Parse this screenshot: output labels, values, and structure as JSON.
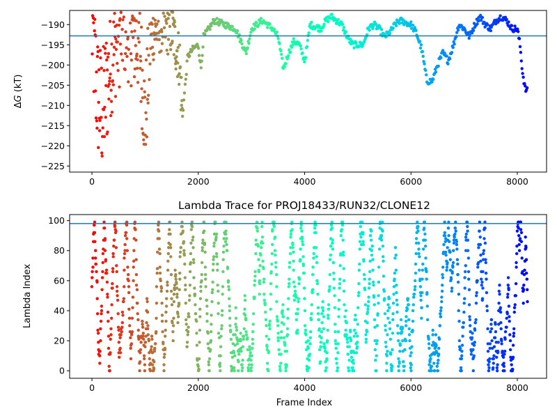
{
  "chart_data": [
    {
      "type": "scatter",
      "ylabel_prefix": "Δ",
      "ylabel_var": "G",
      "ylabel_unit": " (kT)",
      "xlim": [
        -420,
        8550
      ],
      "ylim": [
        -226.5,
        -186.5
      ],
      "xticks": [
        0,
        2000,
        4000,
        6000,
        8000
      ],
      "yticks": [
        -225,
        -220,
        -215,
        -210,
        -205,
        -200,
        -195,
        -190
      ],
      "hline": -192.8,
      "hline_color": "#1f77b4",
      "colormap": "rainbow (reversed)",
      "n_frames": 8190,
      "trajectory": [
        {
          "x": 0,
          "y": -190
        },
        {
          "x": 100,
          "y": -207
        },
        {
          "x": 200,
          "y": -212
        },
        {
          "x": 300,
          "y": -203
        },
        {
          "x": 450,
          "y": -195
        },
        {
          "x": 600,
          "y": -190
        },
        {
          "x": 900,
          "y": -195
        },
        {
          "x": 1000,
          "y": -214
        },
        {
          "x": 1100,
          "y": -193
        },
        {
          "x": 1300,
          "y": -190
        },
        {
          "x": 1500,
          "y": -191
        },
        {
          "x": 1650,
          "y": -199
        },
        {
          "x": 1700,
          "y": -213
        },
        {
          "x": 1800,
          "y": -198
        },
        {
          "x": 1900,
          "y": -196
        },
        {
          "x": 2000,
          "y": -195
        },
        {
          "x": 2050,
          "y": -201
        },
        {
          "x": 2100,
          "y": -193
        },
        {
          "x": 2300,
          "y": -189
        },
        {
          "x": 2500,
          "y": -190
        },
        {
          "x": 2700,
          "y": -191
        },
        {
          "x": 2800,
          "y": -194
        },
        {
          "x": 2900,
          "y": -197
        },
        {
          "x": 3000,
          "y": -191
        },
        {
          "x": 3200,
          "y": -189
        },
        {
          "x": 3400,
          "y": -191
        },
        {
          "x": 3500,
          "y": -193
        },
        {
          "x": 3600,
          "y": -201
        },
        {
          "x": 3700,
          "y": -197
        },
        {
          "x": 3800,
          "y": -194
        },
        {
          "x": 3900,
          "y": -195
        },
        {
          "x": 4000,
          "y": -199
        },
        {
          "x": 4050,
          "y": -195
        },
        {
          "x": 4100,
          "y": -190
        },
        {
          "x": 4300,
          "y": -191
        },
        {
          "x": 4400,
          "y": -189
        },
        {
          "x": 4500,
          "y": -188
        },
        {
          "x": 4700,
          "y": -190
        },
        {
          "x": 4800,
          "y": -193
        },
        {
          "x": 4900,
          "y": -195
        },
        {
          "x": 5100,
          "y": -195
        },
        {
          "x": 5200,
          "y": -191
        },
        {
          "x": 5300,
          "y": -190
        },
        {
          "x": 5400,
          "y": -191
        },
        {
          "x": 5500,
          "y": -193
        },
        {
          "x": 5600,
          "y": -192
        },
        {
          "x": 5700,
          "y": -190
        },
        {
          "x": 5800,
          "y": -189
        },
        {
          "x": 6000,
          "y": -190
        },
        {
          "x": 6100,
          "y": -192
        },
        {
          "x": 6200,
          "y": -196
        },
        {
          "x": 6300,
          "y": -204
        },
        {
          "x": 6400,
          "y": -204
        },
        {
          "x": 6500,
          "y": -200
        },
        {
          "x": 6600,
          "y": -197
        },
        {
          "x": 6700,
          "y": -199
        },
        {
          "x": 6800,
          "y": -195
        },
        {
          "x": 6900,
          "y": -190
        },
        {
          "x": 7000,
          "y": -191
        },
        {
          "x": 7100,
          "y": -193
        },
        {
          "x": 7200,
          "y": -190
        },
        {
          "x": 7300,
          "y": -188
        },
        {
          "x": 7400,
          "y": -190
        },
        {
          "x": 7500,
          "y": -191
        },
        {
          "x": 7600,
          "y": -189
        },
        {
          "x": 7700,
          "y": -188
        },
        {
          "x": 7800,
          "y": -189
        },
        {
          "x": 7900,
          "y": -191
        },
        {
          "x": 8000,
          "y": -191
        },
        {
          "x": 8050,
          "y": -195
        },
        {
          "x": 8100,
          "y": -202
        },
        {
          "x": 8150,
          "y": -206
        },
        {
          "x": 8190,
          "y": -206.5
        }
      ]
    },
    {
      "type": "scatter",
      "title": "Lambda Trace for PROJ18433/RUN32/CLONE12",
      "xlabel": "Frame Index",
      "ylabel": "Lambda Index",
      "xlim": [
        -420,
        8550
      ],
      "ylim": [
        -5,
        104
      ],
      "xticks": [
        0,
        2000,
        4000,
        6000,
        8000
      ],
      "yticks": [
        0,
        20,
        40,
        60,
        80,
        100
      ],
      "hline": 98,
      "hline_color": "#1f77b4",
      "colormap": "rainbow (reversed)",
      "n_frames": 8190,
      "lambda_range": [
        0,
        99
      ]
    }
  ]
}
